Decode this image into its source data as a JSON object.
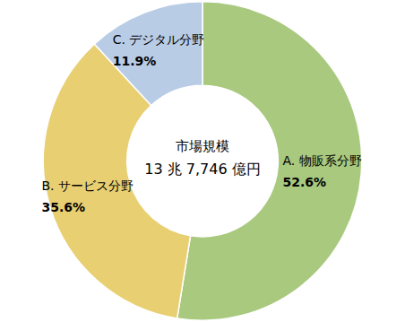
{
  "chart_data": {
    "type": "pie",
    "title": "市場規模",
    "subtitle": "13 兆 7,746 億円",
    "categories": [
      "A. 物販系分野",
      "B. サービス分野",
      "C. デジタル分野"
    ],
    "values": [
      52.6,
      35.6,
      11.9
    ],
    "value_labels": [
      "52.6%",
      "35.6%",
      "11.9%"
    ],
    "colors": [
      "#a9c97f",
      "#e8cf72",
      "#b9cce6"
    ],
    "data_labels": true
  }
}
